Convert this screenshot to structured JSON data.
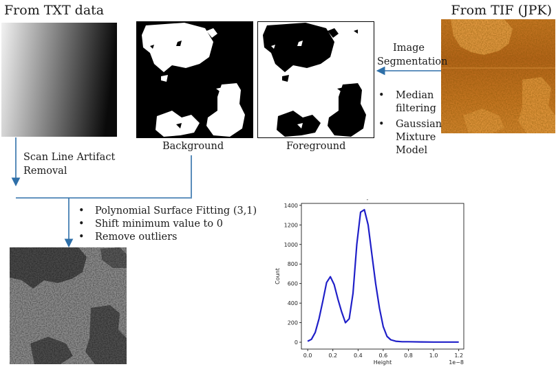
{
  "headings": {
    "left": "From TXT data",
    "right": "From TIF (JPK)"
  },
  "captions": {
    "background": "Background",
    "foreground": "Foreground"
  },
  "steps": {
    "segmentation": [
      "Image",
      "Segmentation"
    ],
    "segmentation_methods": [
      "Median filtering",
      "Gaussian Mixture Model"
    ],
    "scanline": [
      "Scan Line Artifact",
      "Removal"
    ],
    "processing": [
      "Polynomial Surface Fitting (3,1)",
      "Shift minimum value to 0",
      "Remove outliers"
    ]
  },
  "colors": {
    "arrow": "#2e6fa8",
    "plot_line": "#1f1fc8",
    "afm_orange": "#c8741a"
  },
  "chart_data": {
    "type": "line",
    "title": "-",
    "xlabel": "Height",
    "ylabel": "Count",
    "x_offset_label": "1e−8",
    "xlim": [
      -0.05,
      1.24
    ],
    "ylim": [
      -70,
      1420
    ],
    "xticks": [
      "0.0",
      "0.2",
      "0.4",
      "0.6",
      "0.8",
      "1.0",
      "1.2"
    ],
    "yticks": [
      "0",
      "200",
      "400",
      "600",
      "800",
      "1000",
      "1200",
      "1400"
    ],
    "series": [
      {
        "x": [
          0.0,
          0.03,
          0.06,
          0.09,
          0.12,
          0.15,
          0.18,
          0.21,
          0.24,
          0.27,
          0.3,
          0.33,
          0.36,
          0.39,
          0.42,
          0.45,
          0.48,
          0.51,
          0.54,
          0.57,
          0.6,
          0.63,
          0.66,
          0.7,
          0.75,
          0.8,
          0.9,
          1.0,
          1.1,
          1.2
        ],
        "y": [
          10,
          30,
          100,
          240,
          420,
          610,
          670,
          590,
          440,
          310,
          200,
          240,
          500,
          1000,
          1330,
          1355,
          1200,
          900,
          600,
          350,
          160,
          60,
          25,
          10,
          5,
          5,
          3,
          2,
          2,
          2
        ]
      }
    ]
  }
}
